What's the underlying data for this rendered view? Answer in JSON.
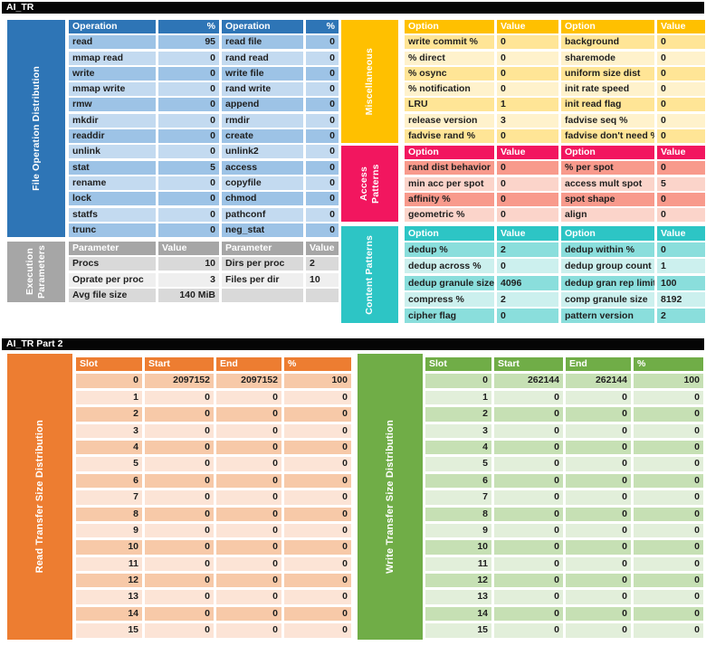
{
  "page1": {
    "title": "AI_TR",
    "file_ops": {
      "label": "File Operation Distribution",
      "headers": [
        "Operation",
        "%",
        "Operation",
        "%"
      ],
      "rows": [
        [
          "read",
          "95",
          "read file",
          "0"
        ],
        [
          "mmap read",
          "0",
          "rand read",
          "0"
        ],
        [
          "write",
          "0",
          "write file",
          "0"
        ],
        [
          "mmap write",
          "0",
          "rand write",
          "0"
        ],
        [
          "rmw",
          "0",
          "append",
          "0"
        ],
        [
          "mkdir",
          "0",
          "rmdir",
          "0"
        ],
        [
          "readdir",
          "0",
          "create",
          "0"
        ],
        [
          "unlink",
          "0",
          "unlink2",
          "0"
        ],
        [
          "stat",
          "5",
          "access",
          "0"
        ],
        [
          "rename",
          "0",
          "copyfile",
          "0"
        ],
        [
          "lock",
          "0",
          "chmod",
          "0"
        ],
        [
          "statfs",
          "0",
          "pathconf",
          "0"
        ],
        [
          "trunc",
          "0",
          "neg_stat",
          "0"
        ]
      ]
    },
    "execution": {
      "label": "Execution Parameters",
      "headers": [
        "Parameter",
        "Value",
        "Parameter",
        "Value"
      ],
      "rows": [
        [
          "Procs",
          "10",
          "Dirs per proc",
          "2"
        ],
        [
          "Oprate per proc",
          "3",
          "Files per dir",
          "10"
        ],
        [
          "Avg file size",
          "140 MiB",
          "",
          ""
        ]
      ]
    },
    "miscellaneous": {
      "label": "Miscellaneous",
      "headers": [
        "Option",
        "Value",
        "Option",
        "Value"
      ],
      "rows": [
        [
          "write commit %",
          "0",
          "background",
          "0"
        ],
        [
          "% direct",
          "0",
          "sharemode",
          "0"
        ],
        [
          "% osync",
          "0",
          "uniform size dist",
          "0"
        ],
        [
          "% notification",
          "0",
          "init rate speed",
          "0"
        ],
        [
          "LRU",
          "1",
          "init read flag",
          "0"
        ],
        [
          "release version",
          "3",
          "fadvise seq %",
          "0"
        ],
        [
          "fadvise rand %",
          "0",
          "fadvise don't need %",
          "0"
        ]
      ]
    },
    "access_patterns": {
      "label": "Access Patterns",
      "headers": [
        "Option",
        "Value",
        "Option",
        "Value"
      ],
      "rows": [
        [
          "rand dist behavior",
          "0",
          "% per spot",
          "0"
        ],
        [
          "min acc per spot",
          "0",
          "access mult spot",
          "5"
        ],
        [
          "affinity %",
          "0",
          "spot shape",
          "0"
        ],
        [
          "geometric %",
          "0",
          "align",
          "0"
        ]
      ]
    },
    "content_patterns": {
      "label": "Content Patterns",
      "headers": [
        "Option",
        "Value",
        "Option",
        "Value"
      ],
      "rows": [
        [
          "dedup %",
          "2",
          "dedup within %",
          "0"
        ],
        [
          "dedup across %",
          "0",
          "dedup group count",
          "1"
        ],
        [
          "dedup granule size",
          "4096",
          "dedup gran rep limit",
          "100"
        ],
        [
          "compress %",
          "2",
          "comp granule size",
          "8192"
        ],
        [
          "cipher flag",
          "0",
          "pattern version",
          "2"
        ]
      ]
    }
  },
  "page2": {
    "title": "AI_TR Part 2",
    "read_dist": {
      "label": "Read Transfer Size Distribution",
      "headers": [
        "Slot",
        "Start",
        "End",
        "%"
      ],
      "rows": [
        [
          "0",
          "2097152",
          "2097152",
          "100"
        ],
        [
          "1",
          "0",
          "0",
          "0"
        ],
        [
          "2",
          "0",
          "0",
          "0"
        ],
        [
          "3",
          "0",
          "0",
          "0"
        ],
        [
          "4",
          "0",
          "0",
          "0"
        ],
        [
          "5",
          "0",
          "0",
          "0"
        ],
        [
          "6",
          "0",
          "0",
          "0"
        ],
        [
          "7",
          "0",
          "0",
          "0"
        ],
        [
          "8",
          "0",
          "0",
          "0"
        ],
        [
          "9",
          "0",
          "0",
          "0"
        ],
        [
          "10",
          "0",
          "0",
          "0"
        ],
        [
          "11",
          "0",
          "0",
          "0"
        ],
        [
          "12",
          "0",
          "0",
          "0"
        ],
        [
          "13",
          "0",
          "0",
          "0"
        ],
        [
          "14",
          "0",
          "0",
          "0"
        ],
        [
          "15",
          "0",
          "0",
          "0"
        ]
      ]
    },
    "write_dist": {
      "label": "Write Transfer Size Distribution",
      "headers": [
        "Slot",
        "Start",
        "End",
        "%"
      ],
      "rows": [
        [
          "0",
          "262144",
          "262144",
          "100"
        ],
        [
          "1",
          "0",
          "0",
          "0"
        ],
        [
          "2",
          "0",
          "0",
          "0"
        ],
        [
          "3",
          "0",
          "0",
          "0"
        ],
        [
          "4",
          "0",
          "0",
          "0"
        ],
        [
          "5",
          "0",
          "0",
          "0"
        ],
        [
          "6",
          "0",
          "0",
          "0"
        ],
        [
          "7",
          "0",
          "0",
          "0"
        ],
        [
          "8",
          "0",
          "0",
          "0"
        ],
        [
          "9",
          "0",
          "0",
          "0"
        ],
        [
          "10",
          "0",
          "0",
          "0"
        ],
        [
          "11",
          "0",
          "0",
          "0"
        ],
        [
          "12",
          "0",
          "0",
          "0"
        ],
        [
          "13",
          "0",
          "0",
          "0"
        ],
        [
          "14",
          "0",
          "0",
          "0"
        ],
        [
          "15",
          "0",
          "0",
          "0"
        ]
      ]
    }
  },
  "colors": {
    "title_bar": "#050505",
    "file_ops": {
      "header": "#2e75b6",
      "row_a": "#9dc3e6",
      "row_b": "#c3daf0"
    },
    "execution": {
      "header": "#a6a6a6",
      "row_a": "#d9d9d9",
      "row_b": "#efefef"
    },
    "miscellaneous": {
      "header": "#ffc000",
      "row_a": "#ffe596",
      "row_b": "#fff2cc"
    },
    "access_patterns": {
      "header": "#f2165f",
      "row_a": "#f89a8c",
      "row_b": "#fbd4ca"
    },
    "content_patterns": {
      "header": "#2dc5c5",
      "row_a": "#8adedc",
      "row_b": "#ccf0ee"
    },
    "read_dist": {
      "header": "#ed7d31",
      "row_a": "#f7c9a8",
      "row_b": "#fce4d6"
    },
    "write_dist": {
      "header": "#70ad47",
      "row_a": "#c6e0b4",
      "row_b": "#e2efda"
    }
  }
}
